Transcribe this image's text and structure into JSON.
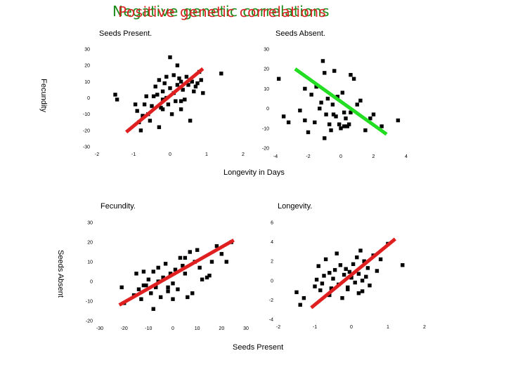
{
  "slide": {
    "title_back": "Negative genetic correlations",
    "title_front": "Positive genetic correlations",
    "top_heading_left": "Seeds Present.",
    "top_heading_right": "Seeds Absent.",
    "top_row_ylabel": "Fecundity",
    "top_row_xlabel": "Longevity in Days",
    "bottom_heading_left": "Fecundity.",
    "bottom_heading_right": "Longevity.",
    "bottom_row_ylabel": "Seeds Absent",
    "bottom_row_xlabel": "Seeds Present"
  },
  "colors": {
    "positive_line": "#e02020",
    "negative_line": "#22dd22",
    "marker": "#000000"
  },
  "chart_data": [
    {
      "type": "scatter",
      "id": "top-left",
      "title": "Seeds Present.",
      "xlabel": "Longevity in Days",
      "ylabel": "Fecundity",
      "xlim": [
        -2,
        2
      ],
      "ylim": [
        -30,
        30
      ],
      "xticks": [
        "-2",
        "-1",
        "0",
        "1",
        "2"
      ],
      "yticks": [
        "30",
        "20",
        "10",
        "0",
        "-10",
        "-20",
        "-30"
      ],
      "trend_color": "#e02020",
      "trend": [
        [
          -1.2,
          -21
        ],
        [
          0.9,
          18
        ]
      ],
      "x": [
        -1.5,
        -1.45,
        -0.95,
        -0.9,
        -0.85,
        -0.8,
        -0.75,
        -0.7,
        -0.65,
        -0.6,
        -0.55,
        -0.5,
        -0.45,
        -0.4,
        -0.35,
        -0.3,
        -0.3,
        -0.25,
        -0.2,
        -0.2,
        -0.15,
        -0.1,
        -0.1,
        -0.05,
        0.0,
        0.0,
        0.05,
        0.1,
        0.1,
        0.15,
        0.2,
        0.2,
        0.25,
        0.3,
        0.3,
        0.35,
        0.4,
        0.45,
        0.5,
        0.55,
        0.6,
        0.65,
        0.7,
        0.75,
        0.8,
        0.85,
        0.9,
        1.4,
        -0.2,
        0.3
      ],
      "y": [
        2,
        -1,
        -4,
        -8,
        -15,
        -20,
        -11,
        -4,
        1,
        -10,
        -14,
        -5,
        1,
        7,
        2,
        11,
        -18,
        -6,
        4,
        -1,
        9,
        0,
        13,
        -4,
        6,
        25,
        -10,
        14,
        3,
        -2,
        8,
        20,
        12,
        -7,
        10,
        5,
        -1,
        13,
        8,
        -14,
        10,
        4,
        7,
        9,
        16,
        11,
        3,
        15,
        -7,
        -2
      ]
    },
    {
      "type": "scatter",
      "id": "top-right",
      "title": "Seeds Absent.",
      "xlabel": "Longevity in Days",
      "ylabel": "Fecundity",
      "xlim": [
        -4,
        4
      ],
      "ylim": [
        -20,
        30
      ],
      "xticks": [
        "-4",
        "-2",
        "0",
        "2",
        "4"
      ],
      "yticks": [
        "30",
        "20",
        "10",
        "0",
        "-10",
        "-20"
      ],
      "trend_color": "#22dd22",
      "trend": [
        [
          -2.8,
          20
        ],
        [
          2.8,
          -13
        ]
      ],
      "x": [
        -3.8,
        -3.5,
        -3.2,
        -2.5,
        -2.2,
        -2.0,
        -1.8,
        -1.6,
        -1.5,
        -1.3,
        -1.2,
        -1.1,
        -1.0,
        -0.9,
        -0.8,
        -0.7,
        -0.6,
        -0.5,
        -0.45,
        -0.4,
        -0.3,
        -0.2,
        -0.1,
        0.0,
        0.1,
        0.2,
        0.3,
        0.4,
        0.5,
        0.6,
        0.8,
        1.0,
        1.2,
        1.5,
        2.0,
        2.5,
        3.5,
        -1.0,
        0.2,
        0.6,
        1.8,
        -2.2
      ],
      "y": [
        15,
        -4,
        -7,
        -1,
        10,
        -12,
        7,
        -7,
        11,
        0,
        3,
        24,
        18,
        -3,
        5,
        -8,
        -11,
        2,
        -3,
        19,
        -4,
        6,
        -8,
        -10,
        8,
        -9,
        -5,
        -9,
        -8,
        17,
        15,
        2,
        4,
        -11,
        -3,
        -9,
        -6,
        -15,
        -2,
        -2,
        -5,
        -6
      ]
    },
    {
      "type": "scatter",
      "id": "bottom-left",
      "title": "Fecundity.",
      "xlabel": "Seeds Present",
      "ylabel": "Seeds Absent",
      "xlim": [
        -30,
        30
      ],
      "ylim": [
        -20,
        30
      ],
      "xticks": [
        "-30",
        "-20",
        "-10",
        "0",
        "10",
        "20",
        "30"
      ],
      "yticks": [
        "30",
        "20",
        "10",
        "0",
        "-10",
        "-20"
      ],
      "trend_color": "#e02020",
      "trend": [
        [
          -22,
          -12
        ],
        [
          25,
          21
        ]
      ],
      "x": [
        -21,
        -20,
        -16,
        -15,
        -14,
        -13,
        -12,
        -11,
        -10,
        -9,
        -8,
        -7,
        -6,
        -6,
        -5,
        -4,
        -3,
        -2,
        -1,
        0,
        0,
        1,
        2,
        3,
        4,
        5,
        6,
        7,
        8,
        9,
        10,
        11,
        12,
        14,
        16,
        18,
        20,
        22,
        24,
        -8,
        -2,
        5,
        -12,
        15
      ],
      "y": [
        -3,
        -11,
        -7,
        4,
        -4,
        -9,
        5,
        -2,
        1,
        -6,
        -14,
        -3,
        7,
        0,
        -8,
        2,
        9,
        -5,
        4,
        -1,
        -9,
        6,
        -4,
        12,
        8,
        4,
        -8,
        15,
        -6,
        10,
        16,
        7,
        1,
        2,
        10,
        18,
        14,
        10,
        20,
        5,
        -3,
        12,
        -2,
        3
      ]
    },
    {
      "type": "scatter",
      "id": "bottom-right",
      "title": "Longevity.",
      "xlabel": "Seeds Present",
      "ylabel": "Seeds Absent",
      "xlim": [
        -2,
        2
      ],
      "ylim": [
        -4,
        6
      ],
      "xticks": [
        "-2",
        "-1",
        "0",
        "1",
        "2"
      ],
      "yticks": [
        "6",
        "4",
        "2",
        "0",
        "-2",
        "-4"
      ],
      "trend_color": "#e02020",
      "trend": [
        [
          -1.1,
          -2.8
        ],
        [
          1.2,
          4.3
        ]
      ],
      "x": [
        -1.5,
        -1.4,
        -1.3,
        -1.0,
        -0.95,
        -0.9,
        -0.85,
        -0.8,
        -0.75,
        -0.7,
        -0.6,
        -0.55,
        -0.5,
        -0.45,
        -0.4,
        -0.35,
        -0.3,
        -0.25,
        -0.2,
        -0.15,
        -0.1,
        -0.05,
        0.0,
        0.05,
        0.1,
        0.15,
        0.2,
        0.25,
        0.3,
        0.35,
        0.4,
        0.45,
        0.5,
        0.6,
        0.7,
        0.8,
        1.0,
        1.4,
        -0.6,
        0.3,
        -0.1,
        0.2
      ],
      "y": [
        -1.2,
        -2.5,
        -1.8,
        -0.6,
        0.1,
        1.5,
        -1.0,
        -0.3,
        0.5,
        2.2,
        0.8,
        -0.8,
        0.2,
        1.1,
        2.8,
        -0.4,
        1.6,
        -1.8,
        0.6,
        1.2,
        -0.7,
        0.9,
        0.3,
        1.7,
        -0.2,
        2.4,
        0.7,
        3.1,
        -1.1,
        2.0,
        0.4,
        1.3,
        -0.5,
        2.6,
        1.0,
        2.2,
        3.8,
        1.6,
        -1.5,
        0.0,
        -0.9,
        -1.3
      ]
    }
  ]
}
